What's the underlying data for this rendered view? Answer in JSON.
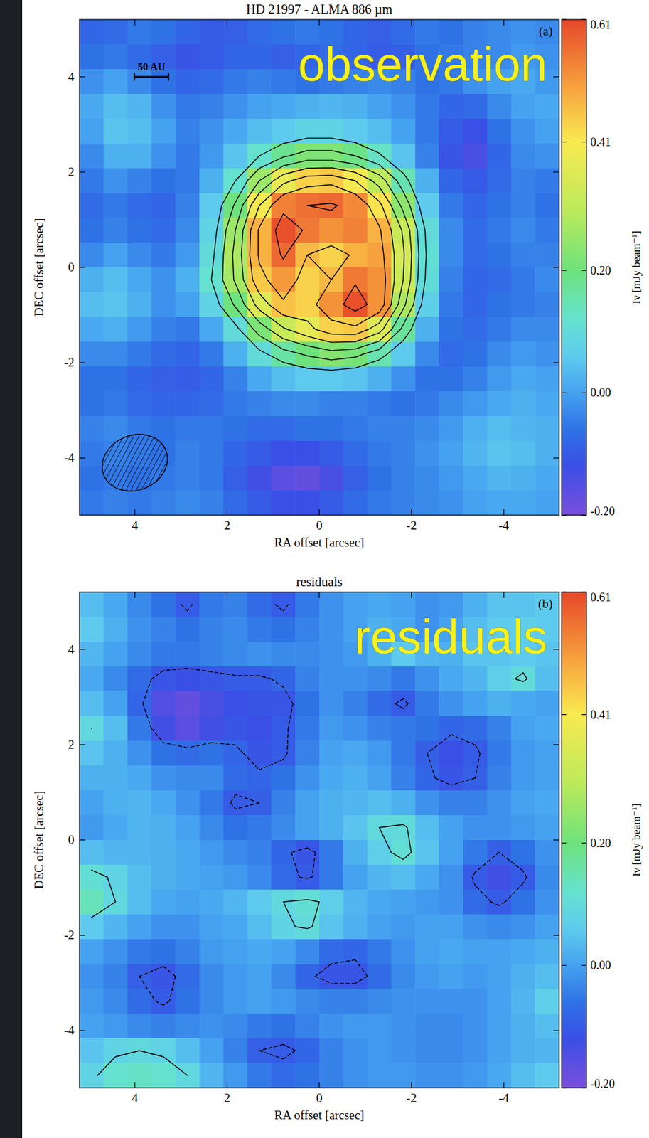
{
  "chart_data": [
    {
      "type": "heatmap",
      "title": "HD 21997 - ALMA 886 µm",
      "panel_label": "(a)",
      "annotation": "observation",
      "x_label": "RA offset [arcsec]",
      "y_label": "DEC offset [arcsec]",
      "xlim": [
        5.2,
        -5.2
      ],
      "ylim": [
        -5.2,
        5.2
      ],
      "xticks": [
        4,
        2,
        0,
        -2,
        -4
      ],
      "yticks": [
        -4,
        -2,
        0,
        2,
        4
      ],
      "x": [
        4.94,
        4.42,
        3.9,
        3.38,
        2.86,
        2.34,
        1.82,
        1.3,
        0.78,
        0.26,
        -0.26,
        -0.78,
        -1.3,
        -1.82,
        -2.34,
        -2.86,
        -3.38,
        -3.9,
        -4.42,
        -4.94
      ],
      "y": [
        4.94,
        4.42,
        3.9,
        3.38,
        2.86,
        2.34,
        1.82,
        1.3,
        0.78,
        0.26,
        -0.26,
        -0.78,
        -1.3,
        -1.82,
        -2.34,
        -2.86,
        -3.38,
        -3.9,
        -4.42,
        -4.94
      ],
      "cells": [
        [
          -0.08,
          -0.07,
          -0.05,
          -0.06,
          -0.08,
          -0.1,
          -0.09,
          -0.07,
          -0.06,
          -0.05,
          -0.06,
          -0.08,
          -0.09,
          -0.07,
          -0.05,
          -0.06,
          -0.04,
          -0.03,
          -0.02,
          -0.03
        ],
        [
          -0.06,
          -0.05,
          -0.07,
          -0.09,
          -0.11,
          -0.1,
          -0.08,
          -0.08,
          -0.09,
          -0.08,
          -0.07,
          -0.08,
          -0.1,
          -0.09,
          -0.06,
          -0.05,
          -0.04,
          -0.03,
          -0.01,
          -0.02
        ],
        [
          -0.02,
          0.0,
          -0.03,
          -0.06,
          -0.08,
          -0.07,
          -0.05,
          -0.04,
          -0.05,
          -0.06,
          -0.05,
          -0.04,
          -0.03,
          -0.04,
          -0.06,
          -0.05,
          -0.02,
          0.0,
          0.01,
          -0.01
        ],
        [
          0.01,
          0.04,
          0.03,
          -0.02,
          -0.05,
          -0.04,
          -0.02,
          0.0,
          0.01,
          0.02,
          0.03,
          0.02,
          0.0,
          -0.02,
          -0.05,
          -0.08,
          -0.07,
          -0.03,
          0.0,
          0.01
        ],
        [
          0.0,
          0.05,
          0.04,
          0.0,
          -0.04,
          -0.02,
          0.01,
          0.04,
          0.06,
          0.08,
          0.08,
          0.06,
          0.04,
          0.0,
          -0.05,
          -0.1,
          -0.12,
          -0.06,
          -0.02,
          0.0
        ],
        [
          -0.03,
          0.02,
          0.02,
          -0.02,
          -0.05,
          -0.01,
          0.05,
          0.12,
          0.18,
          0.22,
          0.22,
          0.19,
          0.13,
          0.05,
          -0.04,
          -0.11,
          -0.14,
          -0.08,
          -0.03,
          -0.02
        ],
        [
          -0.05,
          -0.02,
          -0.04,
          -0.06,
          -0.05,
          0.02,
          0.12,
          0.26,
          0.38,
          0.44,
          0.45,
          0.4,
          0.3,
          0.15,
          0.02,
          -0.08,
          -0.1,
          -0.07,
          -0.04,
          -0.05
        ],
        [
          -0.07,
          -0.05,
          -0.07,
          -0.08,
          -0.04,
          0.06,
          0.2,
          0.4,
          0.54,
          0.56,
          0.57,
          0.53,
          0.42,
          0.24,
          0.06,
          -0.05,
          -0.08,
          -0.06,
          -0.04,
          -0.06
        ],
        [
          -0.06,
          -0.04,
          -0.06,
          -0.07,
          -0.03,
          0.08,
          0.26,
          0.48,
          0.6,
          0.55,
          0.52,
          0.54,
          0.48,
          0.32,
          0.1,
          -0.03,
          -0.07,
          -0.05,
          -0.03,
          -0.05
        ],
        [
          -0.03,
          0.0,
          -0.03,
          -0.05,
          -0.01,
          0.1,
          0.28,
          0.48,
          0.57,
          0.47,
          0.44,
          0.48,
          0.5,
          0.34,
          0.11,
          -0.03,
          -0.07,
          -0.06,
          -0.04,
          -0.04
        ],
        [
          0.02,
          0.04,
          0.01,
          -0.02,
          0.02,
          0.12,
          0.27,
          0.45,
          0.51,
          0.44,
          0.47,
          0.55,
          0.52,
          0.33,
          0.1,
          -0.04,
          -0.08,
          -0.07,
          -0.05,
          -0.03
        ],
        [
          0.04,
          0.05,
          0.02,
          -0.02,
          0.0,
          0.08,
          0.2,
          0.36,
          0.46,
          0.44,
          0.52,
          0.6,
          0.52,
          0.28,
          0.07,
          -0.05,
          -0.08,
          -0.06,
          -0.05,
          -0.04
        ],
        [
          0.01,
          0.02,
          -0.01,
          -0.04,
          -0.05,
          0.01,
          0.1,
          0.22,
          0.32,
          0.38,
          0.44,
          0.45,
          0.36,
          0.17,
          0.02,
          -0.06,
          -0.07,
          -0.05,
          -0.03,
          -0.03
        ],
        [
          -0.03,
          -0.03,
          -0.05,
          -0.07,
          -0.08,
          -0.05,
          0.02,
          0.1,
          0.16,
          0.2,
          0.23,
          0.21,
          0.15,
          0.06,
          -0.03,
          -0.07,
          -0.06,
          -0.03,
          -0.01,
          -0.02
        ],
        [
          -0.06,
          -0.06,
          -0.08,
          -0.09,
          -0.1,
          -0.08,
          -0.04,
          0.01,
          0.04,
          0.06,
          0.06,
          0.05,
          0.02,
          -0.02,
          -0.06,
          -0.06,
          -0.04,
          -0.01,
          0.01,
          0.0
        ],
        [
          -0.06,
          -0.05,
          -0.07,
          -0.08,
          -0.08,
          -0.07,
          -0.05,
          -0.04,
          -0.03,
          -0.03,
          -0.04,
          -0.04,
          -0.05,
          -0.06,
          -0.05,
          -0.03,
          -0.01,
          0.01,
          0.02,
          0.01
        ],
        [
          -0.04,
          -0.03,
          -0.05,
          -0.06,
          -0.05,
          -0.05,
          -0.06,
          -0.07,
          -0.07,
          -0.06,
          -0.06,
          -0.05,
          -0.04,
          -0.04,
          -0.03,
          -0.01,
          0.02,
          0.04,
          0.03,
          0.02
        ],
        [
          -0.05,
          -0.04,
          -0.05,
          -0.06,
          -0.04,
          -0.05,
          -0.08,
          -0.1,
          -0.12,
          -0.12,
          -0.1,
          -0.07,
          -0.05,
          -0.04,
          -0.02,
          0.0,
          0.03,
          0.05,
          0.04,
          0.02
        ],
        [
          -0.06,
          -0.05,
          -0.06,
          -0.05,
          -0.04,
          -0.05,
          -0.09,
          -0.13,
          -0.16,
          -0.17,
          -0.14,
          -0.09,
          -0.06,
          -0.04,
          -0.03,
          -0.01,
          0.01,
          0.03,
          0.02,
          0.01
        ],
        [
          -0.05,
          -0.04,
          -0.05,
          -0.04,
          -0.03,
          -0.04,
          -0.07,
          -0.1,
          -0.12,
          -0.12,
          -0.1,
          -0.07,
          -0.05,
          -0.04,
          -0.03,
          -0.02,
          0.0,
          0.01,
          0.01,
          0.0
        ]
      ],
      "contours": [
        0.12,
        0.19,
        0.26,
        0.33,
        0.4,
        0.47,
        0.56
      ],
      "colorbar": {
        "range": [
          -0.2,
          0.61
        ],
        "ticks": [
          0.61,
          0.41,
          {
            "value": 0.2,
            "label": "0.20"
          },
          {
            "value": 0,
            "label": "0.00"
          },
          {
            "value": -0.2,
            "label": "-0.20"
          }
        ],
        "label": "Iν [mJy beam⁻¹]"
      },
      "beam": {
        "x": 4.0,
        "y": -4.1,
        "major": 1.45,
        "minor": 1.15
      },
      "scale_bar": {
        "label": "50 AU",
        "x": 3.64,
        "y": 4.0,
        "length": 0.74
      }
    },
    {
      "type": "heatmap",
      "title": "residuals",
      "panel_label": "(b)",
      "annotation": "residuals",
      "x_label": "RA offset [arcsec]",
      "y_label": "DEC offset [arcsec]",
      "xlim": [
        5.2,
        -5.2
      ],
      "ylim": [
        -5.2,
        5.2
      ],
      "xticks": [
        4,
        2,
        0,
        -2,
        -4
      ],
      "yticks": [
        -4,
        -2,
        0,
        2,
        4
      ],
      "x": [
        4.94,
        4.42,
        3.9,
        3.38,
        2.86,
        2.34,
        1.82,
        1.3,
        0.78,
        0.26,
        -0.26,
        -0.78,
        -1.3,
        -1.82,
        -2.34,
        -2.86,
        -3.38,
        -3.9,
        -4.42,
        -4.94
      ],
      "y": [
        4.94,
        4.42,
        3.9,
        3.38,
        2.86,
        2.34,
        1.82,
        1.3,
        0.78,
        0.26,
        -0.26,
        -0.78,
        -1.3,
        -1.82,
        -2.34,
        -2.86,
        -3.38,
        -3.9,
        -4.42,
        -4.94
      ],
      "cells": [
        [
          0.04,
          0.01,
          -0.03,
          -0.06,
          -0.1,
          -0.05,
          -0.04,
          -0.07,
          -0.1,
          -0.05,
          -0.02,
          0.0,
          0.01,
          0.0,
          -0.02,
          -0.01,
          0.02,
          0.05,
          0.05,
          0.06
        ],
        [
          0.06,
          0.02,
          -0.02,
          -0.04,
          -0.06,
          -0.04,
          -0.03,
          -0.05,
          -0.06,
          -0.04,
          -0.02,
          0.0,
          0.02,
          0.01,
          -0.02,
          0.0,
          0.04,
          0.06,
          0.07,
          0.06
        ],
        [
          0.03,
          0.0,
          -0.03,
          -0.05,
          -0.05,
          -0.04,
          -0.03,
          -0.02,
          -0.03,
          -0.03,
          -0.02,
          -0.01,
          0.02,
          0.06,
          0.03,
          0.02,
          0.05,
          0.05,
          0.06,
          0.05
        ],
        [
          0.01,
          -0.03,
          -0.07,
          -0.11,
          -0.12,
          -0.11,
          -0.1,
          -0.1,
          -0.08,
          -0.04,
          -0.02,
          -0.02,
          -0.03,
          -0.05,
          -0.02,
          0.01,
          0.03,
          0.07,
          0.1,
          0.04
        ],
        [
          0.04,
          0.0,
          -0.08,
          -0.15,
          -0.17,
          -0.14,
          -0.12,
          -0.11,
          -0.11,
          -0.06,
          -0.02,
          -0.04,
          -0.07,
          -0.1,
          -0.05,
          -0.02,
          0.0,
          0.02,
          0.01,
          0.0
        ],
        [
          0.09,
          0.04,
          -0.05,
          -0.13,
          -0.16,
          -0.13,
          -0.11,
          -0.12,
          -0.1,
          -0.05,
          -0.01,
          -0.02,
          -0.04,
          -0.05,
          -0.06,
          -0.08,
          -0.07,
          -0.04,
          0.0,
          0.01
        ],
        [
          0.05,
          0.02,
          -0.02,
          -0.06,
          -0.07,
          -0.06,
          -0.08,
          -0.11,
          -0.1,
          -0.04,
          0.0,
          0.01,
          -0.01,
          -0.05,
          -0.09,
          -0.12,
          -0.1,
          -0.05,
          -0.01,
          0.0
        ],
        [
          0.02,
          0.02,
          0.01,
          -0.02,
          -0.03,
          -0.03,
          -0.07,
          -0.08,
          -0.06,
          -0.02,
          0.01,
          0.02,
          0.0,
          -0.04,
          -0.08,
          -0.11,
          -0.09,
          -0.04,
          -0.01,
          0.0
        ],
        [
          0.0,
          0.02,
          0.03,
          0.01,
          -0.02,
          -0.05,
          -0.1,
          -0.09,
          -0.04,
          0.0,
          0.02,
          0.03,
          0.04,
          0.02,
          -0.02,
          -0.04,
          -0.04,
          -0.02,
          0.0,
          0.01
        ],
        [
          -0.01,
          0.01,
          0.03,
          0.02,
          0.0,
          -0.03,
          -0.06,
          -0.05,
          -0.03,
          0.0,
          0.02,
          0.05,
          0.09,
          0.1,
          0.04,
          0.0,
          -0.02,
          -0.02,
          -0.01,
          0.0
        ],
        [
          0.04,
          0.03,
          0.03,
          0.02,
          0.01,
          -0.01,
          -0.03,
          -0.04,
          -0.08,
          -0.11,
          -0.05,
          0.02,
          0.07,
          0.11,
          0.05,
          0.0,
          -0.05,
          -0.09,
          -0.06,
          -0.02
        ],
        [
          0.11,
          0.08,
          0.04,
          0.02,
          0.01,
          0.0,
          -0.01,
          -0.03,
          -0.07,
          -0.1,
          -0.05,
          0.0,
          0.03,
          0.04,
          0.01,
          -0.02,
          -0.1,
          -0.13,
          -0.1,
          -0.03
        ],
        [
          0.14,
          0.09,
          0.04,
          0.01,
          0.0,
          0.01,
          0.03,
          0.06,
          0.09,
          0.11,
          0.07,
          0.03,
          0.01,
          0.0,
          -0.01,
          -0.02,
          -0.07,
          -0.1,
          -0.06,
          -0.02
        ],
        [
          0.06,
          0.03,
          0.0,
          -0.02,
          -0.02,
          0.0,
          0.01,
          0.04,
          0.08,
          0.1,
          0.05,
          0.02,
          0.0,
          -0.01,
          0.0,
          0.0,
          -0.02,
          -0.03,
          -0.02,
          0.0
        ],
        [
          0.0,
          -0.02,
          -0.05,
          -0.06,
          -0.04,
          -0.01,
          0.0,
          0.01,
          0.0,
          -0.03,
          -0.07,
          -0.08,
          -0.05,
          -0.02,
          0.0,
          0.01,
          0.0,
          0.0,
          0.01,
          0.02
        ],
        [
          -0.02,
          -0.04,
          -0.09,
          -0.11,
          -0.07,
          -0.03,
          -0.01,
          0.0,
          -0.03,
          -0.08,
          -0.11,
          -0.11,
          -0.07,
          -0.03,
          -0.01,
          0.0,
          -0.01,
          0.0,
          0.02,
          0.04
        ],
        [
          -0.01,
          -0.03,
          -0.07,
          -0.1,
          -0.06,
          -0.03,
          -0.01,
          0.0,
          -0.01,
          -0.03,
          -0.04,
          -0.04,
          -0.03,
          -0.02,
          -0.02,
          -0.02,
          -0.02,
          0.0,
          0.03,
          0.07
        ],
        [
          0.0,
          -0.01,
          -0.03,
          -0.04,
          -0.03,
          -0.02,
          -0.03,
          -0.05,
          -0.06,
          -0.04,
          -0.02,
          -0.01,
          -0.01,
          -0.02,
          -0.03,
          -0.03,
          -0.02,
          0.0,
          0.02,
          0.04
        ],
        [
          0.05,
          0.08,
          0.09,
          0.08,
          0.04,
          0.0,
          -0.04,
          -0.09,
          -0.1,
          -0.08,
          -0.04,
          -0.02,
          -0.01,
          -0.02,
          -0.03,
          -0.03,
          -0.02,
          0.0,
          0.02,
          0.03
        ],
        [
          0.08,
          0.12,
          0.13,
          0.12,
          0.09,
          0.03,
          -0.01,
          -0.05,
          -0.07,
          -0.06,
          -0.04,
          -0.02,
          -0.01,
          -0.01,
          -0.02,
          -0.02,
          -0.01,
          0.01,
          0.04,
          0.06
        ]
      ],
      "contours": [
        -0.09,
        0.09
      ],
      "colorbar": {
        "range": [
          -0.2,
          0.61
        ],
        "ticks": [
          0.61,
          0.41,
          {
            "value": 0.2,
            "label": "0.20"
          },
          {
            "value": 0,
            "label": "0.00"
          },
          {
            "value": -0.2,
            "label": "-0.20"
          }
        ],
        "label": "Iν [mJy beam⁻¹]"
      }
    }
  ]
}
